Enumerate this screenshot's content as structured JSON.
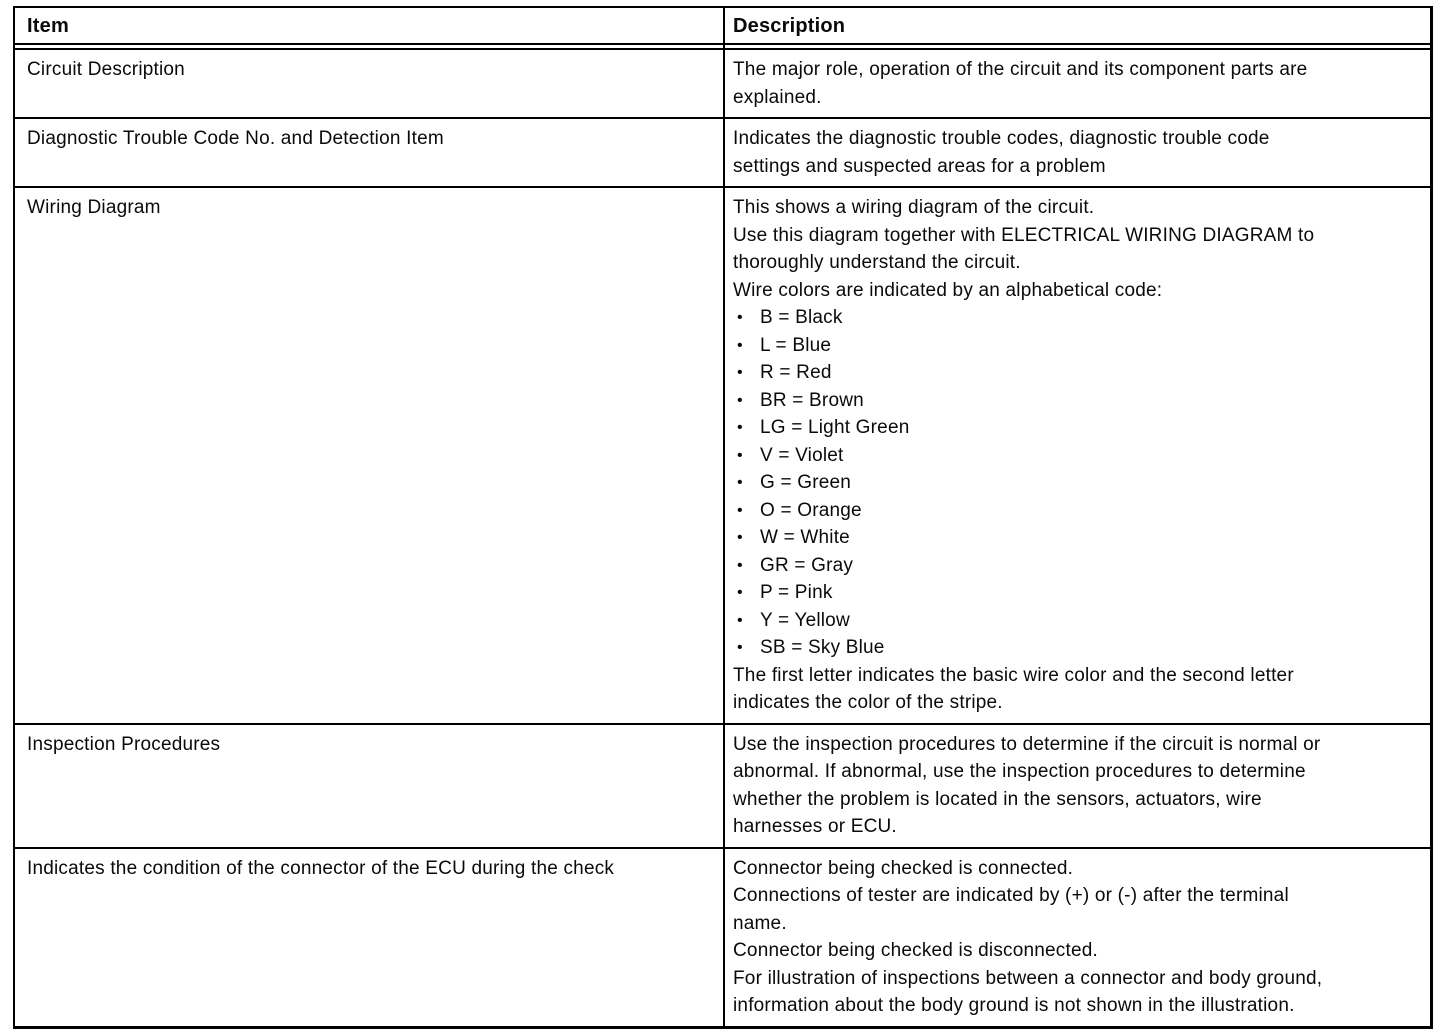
{
  "header": {
    "item": "Item",
    "description": "Description"
  },
  "bullet_char": "•",
  "colors": {
    "border": "#000000",
    "text": "#0a0a0a",
    "background": "#ffffff"
  },
  "rows": [
    {
      "item": "Circuit Description",
      "description": [
        {
          "text": "The major role, operation of the circuit and its component parts are"
        },
        {
          "text": "explained."
        }
      ]
    },
    {
      "item": "Diagnostic Trouble Code No. and Detection Item",
      "description": [
        {
          "text": "Indicates the diagnostic trouble codes, diagnostic trouble code"
        },
        {
          "text": "settings and suspected areas for a problem"
        }
      ]
    },
    {
      "item": "Wiring Diagram",
      "description": [
        {
          "text": "This shows a wiring diagram of the circuit."
        },
        {
          "text": "Use this diagram together with ELECTRICAL WIRING DIAGRAM to"
        },
        {
          "text": "thoroughly understand the circuit."
        },
        {
          "text": "Wire colors are indicated by an alphabetical code:"
        },
        {
          "bullet": true,
          "text": "B = Black"
        },
        {
          "bullet": true,
          "text": "L = Blue"
        },
        {
          "bullet": true,
          "text": "R = Red"
        },
        {
          "bullet": true,
          "text": "BR = Brown"
        },
        {
          "bullet": true,
          "text": "LG = Light Green"
        },
        {
          "bullet": true,
          "text": "V = Violet"
        },
        {
          "bullet": true,
          "text": "G = Green"
        },
        {
          "bullet": true,
          "text": "O = Orange"
        },
        {
          "bullet": true,
          "text": "W = White"
        },
        {
          "bullet": true,
          "text": "GR = Gray"
        },
        {
          "bullet": true,
          "text": "P = Pink"
        },
        {
          "bullet": true,
          "text": "Y = Yellow"
        },
        {
          "bullet": true,
          "text": "SB = Sky Blue"
        },
        {
          "text": "The first letter indicates the basic wire color and the second letter"
        },
        {
          "text": "indicates the color of the stripe."
        }
      ]
    },
    {
      "item": "Inspection Procedures",
      "description": [
        {
          "text": "Use the inspection procedures to determine if the circuit is normal or"
        },
        {
          "text": "abnormal. If abnormal, use the inspection procedures to determine"
        },
        {
          "text": "whether the problem is located in the sensors, actuators, wire"
        },
        {
          "text": "harnesses or ECU."
        }
      ]
    },
    {
      "item": "Indicates the condition of the connector of the ECU during the check",
      "description": [
        {
          "text": "Connector being checked is connected."
        },
        {
          "text": "Connections of tester are indicated by (+) or (-) after the terminal"
        },
        {
          "text": "name."
        },
        {
          "text": "Connector being checked is disconnected."
        },
        {
          "text": "For illustration of inspections between a connector and body ground,"
        },
        {
          "text": "information about the body ground is not shown in the illustration."
        }
      ]
    }
  ]
}
